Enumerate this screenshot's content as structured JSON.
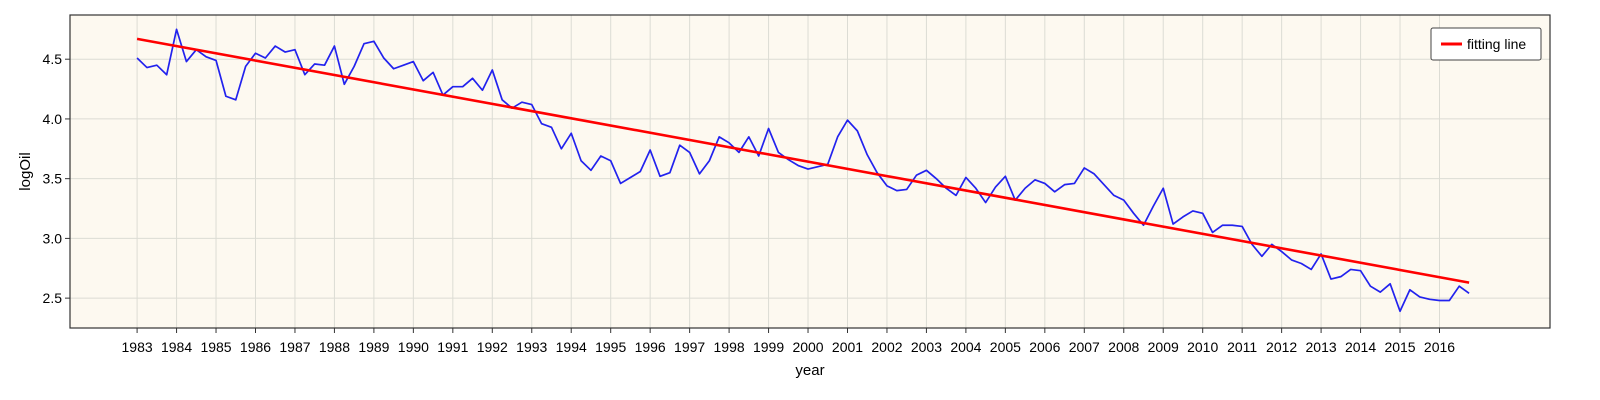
{
  "chart_data": {
    "type": "line",
    "title": "",
    "xlabel": "year",
    "ylabel": "logOil",
    "xlim": [
      1981.3,
      2018.8
    ],
    "ylim": [
      2.25,
      4.87
    ],
    "x_ticks": [
      "1983",
      "1984",
      "1985",
      "1986",
      "1987",
      "1988",
      "1989",
      "1990",
      "1991",
      "1992",
      "1993",
      "1994",
      "1995",
      "1996",
      "1997",
      "1998",
      "1999",
      "2000",
      "2001",
      "2002",
      "2003",
      "2004",
      "2005",
      "2006",
      "2007",
      "2008",
      "2009",
      "2010",
      "2011",
      "2012",
      "2013",
      "2014",
      "2015",
      "2016"
    ],
    "y_ticks": [
      "2.5",
      "3.0",
      "3.5",
      "4.0",
      "4.5"
    ],
    "grid": true,
    "legend": {
      "position": "top-right",
      "entries": [
        "fitting line"
      ]
    },
    "colors": {
      "plot_bg": "#fdf9f0",
      "data_line": "#2222ee",
      "fit_line": "#ff0000",
      "grid": "#dcdcd4"
    },
    "series": [
      {
        "style": "line",
        "color": "#2222ee",
        "x_start": 1983.0,
        "x_step": 0.25,
        "values": [
          4.51,
          4.43,
          4.45,
          4.37,
          4.75,
          4.48,
          4.58,
          4.52,
          4.49,
          4.19,
          4.16,
          4.44,
          4.55,
          4.51,
          4.61,
          4.56,
          4.58,
          4.37,
          4.46,
          4.45,
          4.61,
          4.29,
          4.44,
          4.63,
          4.65,
          4.51,
          4.42,
          4.45,
          4.48,
          4.32,
          4.39,
          4.2,
          4.27,
          4.27,
          4.34,
          4.24,
          4.41,
          4.16,
          4.09,
          4.14,
          4.12,
          3.96,
          3.93,
          3.75,
          3.88,
          3.65,
          3.57,
          3.69,
          3.65,
          3.46,
          3.51,
          3.56,
          3.74,
          3.52,
          3.55,
          3.78,
          3.72,
          3.54,
          3.65,
          3.85,
          3.8,
          3.72,
          3.85,
          3.69,
          3.92,
          3.72,
          3.66,
          3.61,
          3.58,
          3.6,
          3.62,
          3.85,
          3.99,
          3.9,
          3.7,
          3.55,
          3.44,
          3.4,
          3.41,
          3.53,
          3.57,
          3.5,
          3.42,
          3.36,
          3.51,
          3.42,
          3.3,
          3.43,
          3.52,
          3.32,
          3.42,
          3.49,
          3.46,
          3.39,
          3.45,
          3.46,
          3.59,
          3.54,
          3.45,
          3.36,
          3.32,
          3.21,
          3.11,
          3.27,
          3.42,
          3.12,
          3.18,
          3.23,
          3.21,
          3.05,
          3.11,
          3.11,
          3.1,
          2.95,
          2.85,
          2.95,
          2.89,
          2.82,
          2.79,
          2.74,
          2.87,
          2.66,
          2.68,
          2.74,
          2.73,
          2.6,
          2.55,
          2.62,
          2.39,
          2.57,
          2.51,
          2.49,
          2.48,
          2.48,
          2.6,
          2.54
        ]
      },
      {
        "name": "fitting line",
        "style": "line",
        "color": "#ff0000",
        "x": [
          1983.0,
          2016.75
        ],
        "values": [
          4.67,
          2.63
        ]
      }
    ]
  }
}
